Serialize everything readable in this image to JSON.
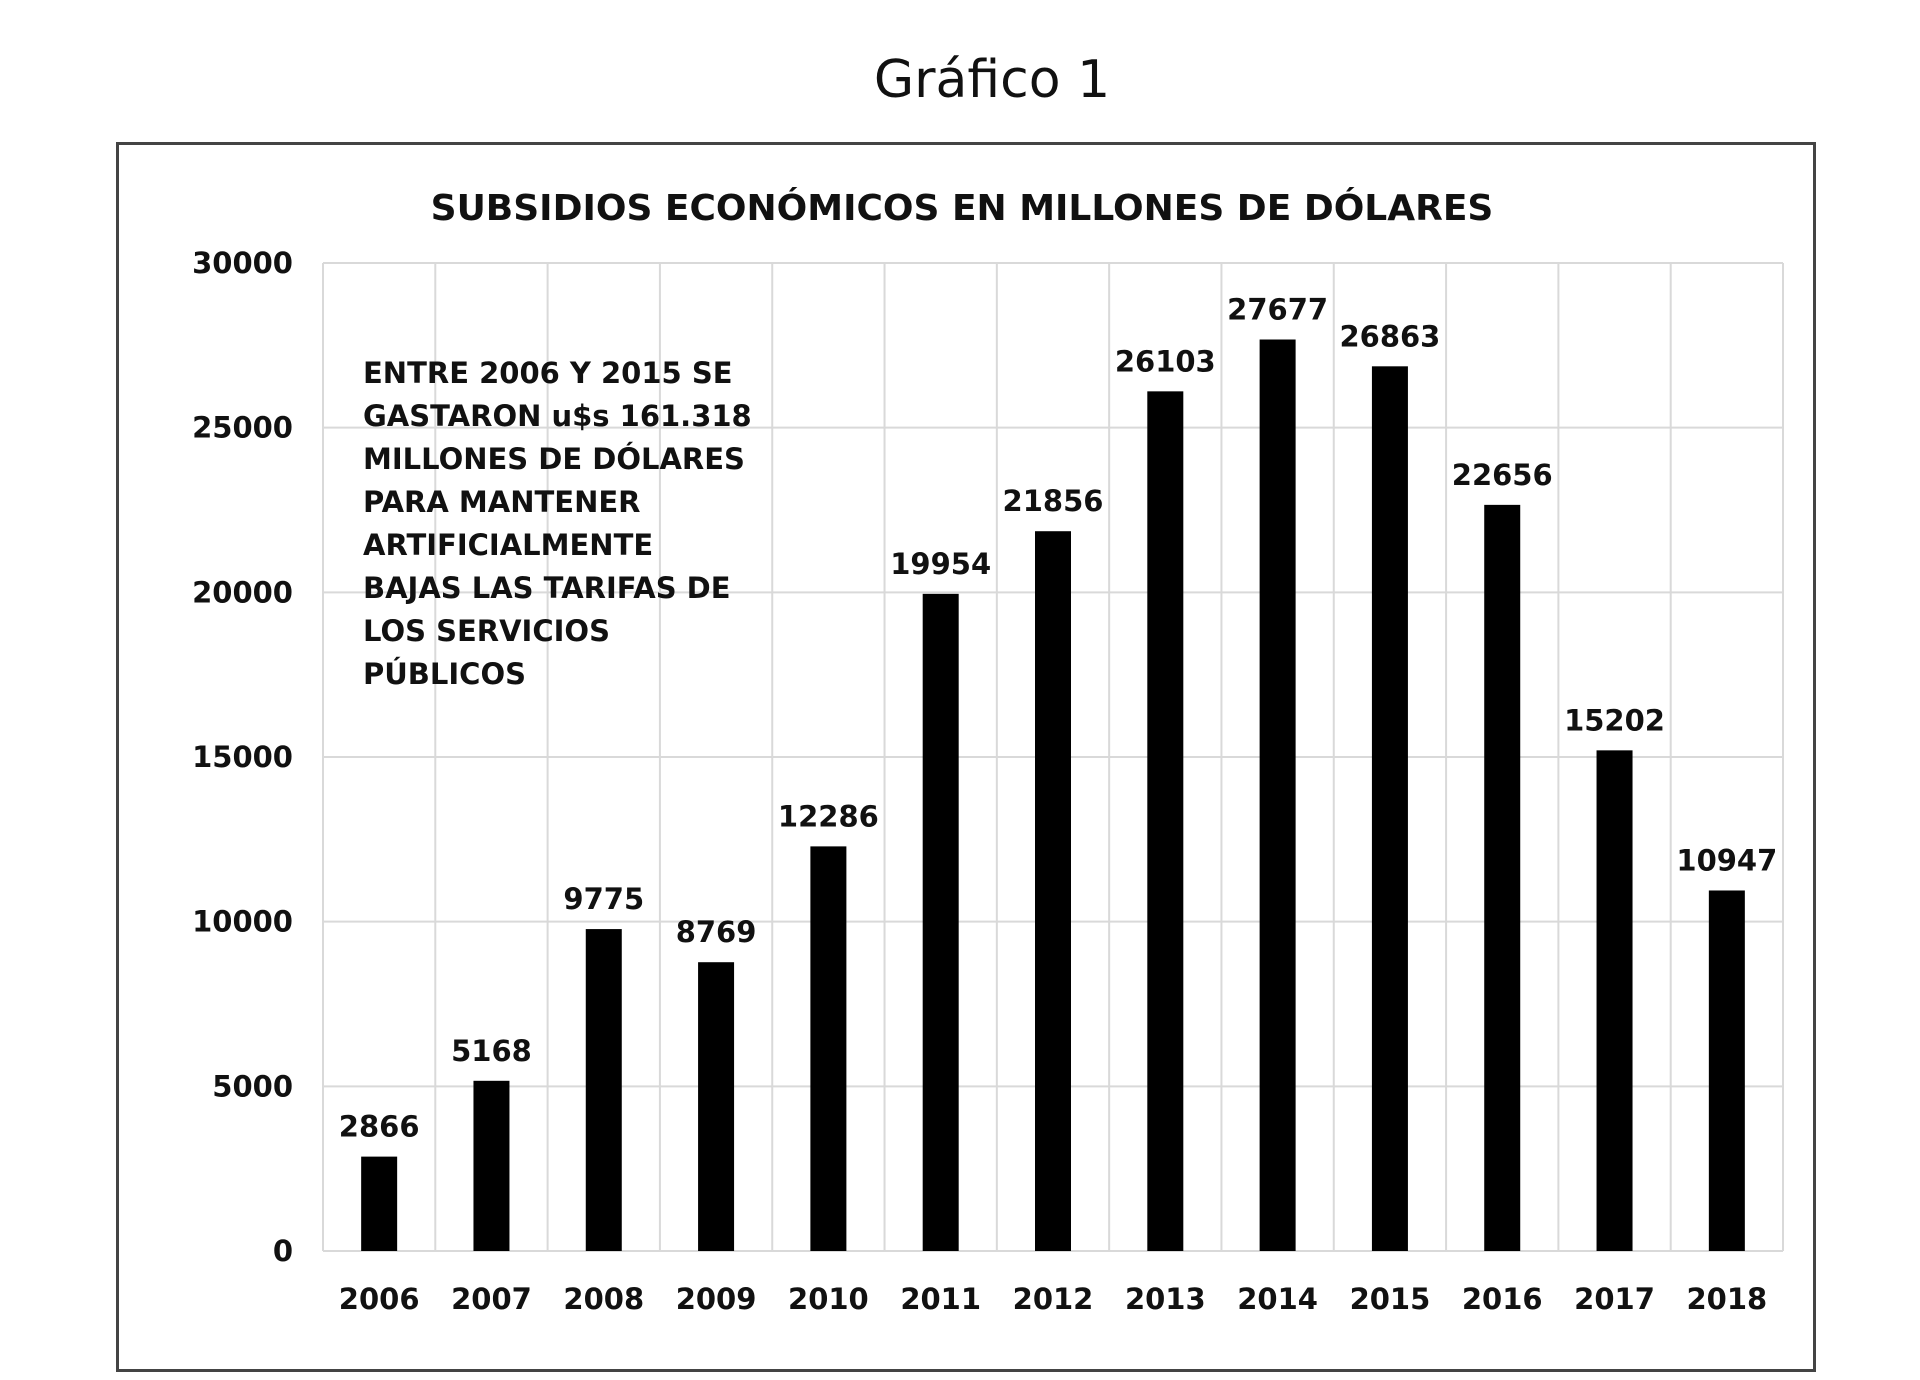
{
  "figure_caption": "Gráfico 1",
  "chart_data": {
    "type": "bar",
    "title": "SUBSIDIOS ECONÓMICOS EN MILLONES DE DÓLARES",
    "xlabel": "",
    "ylabel": "",
    "categories": [
      "2006",
      "2007",
      "2008",
      "2009",
      "2010",
      "2011",
      "2012",
      "2013",
      "2014",
      "2015",
      "2016",
      "2017",
      "2018"
    ],
    "values": [
      2866,
      5168,
      9775,
      8769,
      12286,
      19954,
      21856,
      26103,
      27677,
      26863,
      22656,
      15202,
      10947
    ],
    "data_labels": [
      "2866",
      "5168",
      "9775",
      "8769",
      "12286",
      "19954",
      "21856",
      "26103",
      "27677",
      "26863",
      "22656",
      "15202",
      "10947"
    ],
    "ylim": [
      0,
      30000
    ],
    "yticks": [
      0,
      5000,
      10000,
      15000,
      20000,
      25000,
      30000
    ],
    "ytick_labels": [
      "0",
      "5000",
      "10000",
      "15000",
      "20000",
      "25000",
      "30000"
    ],
    "grid": true,
    "legend": "none",
    "bar_color": "#000000",
    "grid_color": "#d9d9d9",
    "annotation_lines": [
      "ENTRE 2006 Y 2015 SE",
      "GASTARON u$s 161.318",
      "MILLONES DE DÓLARES",
      "PARA MANTENER",
      "ARTIFICIALMENTE",
      "BAJAS LAS TARIFAS DE",
      "LOS SERVICIOS",
      "PÚBLICOS"
    ]
  }
}
